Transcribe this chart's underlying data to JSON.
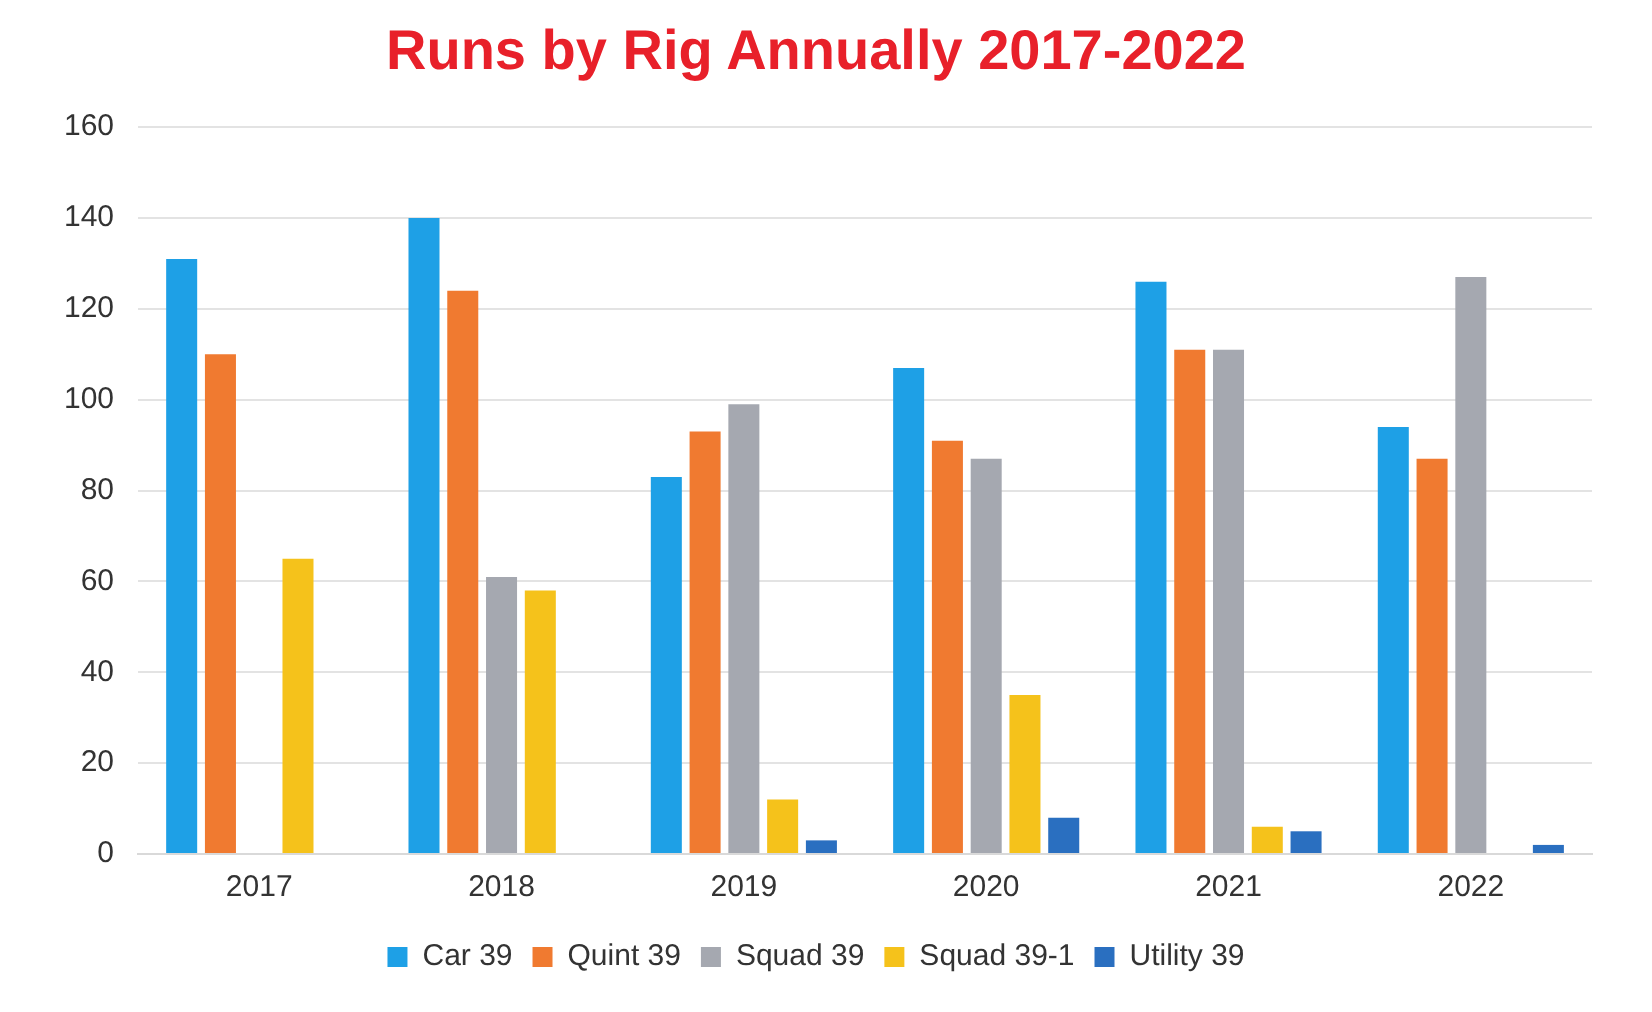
{
  "chart_data": {
    "type": "bar",
    "title": "Runs by Rig Annually 2017-2022",
    "categories": [
      "2017",
      "2018",
      "2019",
      "2020",
      "2021",
      "2022"
    ],
    "series": [
      {
        "name": "Car 39",
        "color": "#1ea0e6",
        "values": [
          131,
          140,
          83,
          107,
          126,
          94
        ]
      },
      {
        "name": "Quint 39",
        "color": "#f07a30",
        "values": [
          110,
          124,
          93,
          91,
          111,
          87
        ]
      },
      {
        "name": "Squad 39",
        "color": "#a5a8b0",
        "values": [
          0,
          61,
          99,
          87,
          111,
          127
        ]
      },
      {
        "name": "Squad 39-1",
        "color": "#f5c21b",
        "values": [
          65,
          58,
          12,
          35,
          6,
          0
        ]
      },
      {
        "name": "Utility 39",
        "color": "#2a6fc0",
        "values": [
          0,
          0,
          3,
          8,
          5,
          2
        ]
      }
    ],
    "ylim": [
      0,
      160
    ],
    "yticks": [
      0,
      20,
      40,
      60,
      80,
      100,
      120,
      140,
      160
    ],
    "grid": "y",
    "legend": "bottom"
  }
}
